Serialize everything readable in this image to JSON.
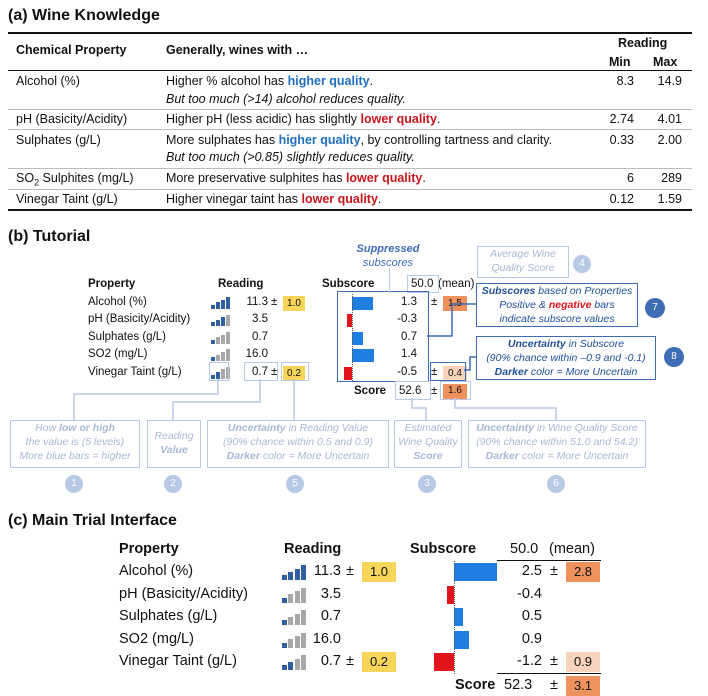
{
  "sectionA": {
    "title": "(a) Wine Knowledge",
    "headers": {
      "property": "Chemical Property",
      "generally": "Generally, wines with …",
      "reading": "Reading",
      "min": "Min",
      "max": "Max"
    },
    "rows": [
      {
        "property": "Alcohol (%)",
        "line1_pre": "Higher % alcohol has ",
        "line1_hl": "higher quality",
        "line1_hl_kind": "blue",
        "line1_post": ".",
        "line2": "But too much (>14) alcohol reduces quality.",
        "min": "8.3",
        "max": "14.9"
      },
      {
        "property": "pH (Basicity/Acidity)",
        "line1_pre": "Higher pH (less acidic) has slightly ",
        "line1_hl": "lower quality",
        "line1_hl_kind": "red",
        "line1_post": ".",
        "line2": "",
        "min": "2.74",
        "max": "4.01"
      },
      {
        "property": "Sulphates (g/L)",
        "line1_pre": "More sulphates has ",
        "line1_hl": "higher quality",
        "line1_hl_kind": "blue",
        "line1_post": ", by controlling tartness and clarity.",
        "line2": "But too much (>0.85) slightly reduces quality.",
        "min": "0.33",
        "max": "2.00"
      },
      {
        "property_pre": "SO",
        "property_sub": "2",
        "property_post": " Sulphites (mg/L)",
        "line1_pre": "More preservative sulphites has ",
        "line1_hl": "lower quality",
        "line1_hl_kind": "red",
        "line1_post": ".",
        "line2": "",
        "min": "6",
        "max": "289"
      },
      {
        "property": "Vinegar Taint (g/L)",
        "line1_pre": "Higher vinegar taint has ",
        "line1_hl": "lower quality",
        "line1_hl_kind": "red",
        "line1_post": ".",
        "line2": "",
        "min": "0.12",
        "max": "1.59"
      }
    ]
  },
  "sectionB": {
    "title": "(b) Tutorial",
    "header_property": "Property",
    "header_reading": "Reading",
    "header_subscore": "Subscore",
    "mean_value": "50.0",
    "mean_label": "(mean)",
    "suppressed_line1": "Suppressed",
    "suppressed_line2": "subscores",
    "avg_line1": "Average Wine",
    "avg_line2": "Quality Score",
    "rows": [
      {
        "property": "Alcohol (%)",
        "reading": "11.3",
        "pm": "±",
        "uncertainty": "1.0",
        "subscore": "1.3",
        "sub_pm": "±",
        "sub_unc": "1.5",
        "value": 1.3,
        "level": 4
      },
      {
        "property": "pH (Basicity/Acidity)",
        "reading": "3.5",
        "subscore": "-0.3",
        "value": -0.3,
        "level": 3
      },
      {
        "property": "Sulphates (g/L)",
        "reading": "0.7",
        "subscore": "0.7",
        "value": 0.7,
        "level": 1
      },
      {
        "property": "SO2 (mg/L)",
        "reading": "16.0",
        "subscore": "1.4",
        "value": 1.4,
        "level": 1
      },
      {
        "property": "Vinegar Taint (g/L)",
        "reading": "0.7",
        "pm": "±",
        "uncertainty": "0.2",
        "subscore": "-0.5",
        "sub_pm": "±",
        "sub_unc": "0.4",
        "value": -0.5,
        "level": 2
      }
    ],
    "score_label": "Score",
    "score_value": "52.6",
    "score_pm": "±",
    "score_unc": "1.6",
    "boxes": {
      "b1_pre": "How ",
      "b1_bold": "low or high",
      "b1_line2": "the value is (5 levels)",
      "b1_line3": "More blue bars = higher",
      "b2_line1": "Reading",
      "b2_line2": "Value",
      "b5_bold": "Uncertainty",
      "b5_line1_post": " in Reading Value",
      "b5_line2": "(90% chance within 0.5 and 0.9)",
      "b5_bold3": "Darker",
      "b5_line3_post": " color = More Uncertain",
      "b3_line1": "Estimated",
      "b3_line2": "Wine Quality",
      "b3_line3": "Score",
      "b6_bold": "Uncertainty",
      "b6_line1_post": " in Wine Quality Score",
      "b6_line2": "(90% chance within 51.0 and 54.2)",
      "b6_bold3": "Darker",
      "b6_line3_post": " color = More Uncertain",
      "b7_bold": "Subscores",
      "b7_line1_post": " based on Properties",
      "b7_line2_pre": "Positive & ",
      "b7_line2_neg": "negative",
      "b7_line2_post": " bars",
      "b7_line3": "indicate subscore values",
      "b8_bold": "Uncertainty",
      "b8_line1_post": " in Subscore",
      "b8_line2": "(90% chance within –0.9 and -0.1)",
      "b8_bold3": "Darker",
      "b8_line3_post": " color = More Uncertain"
    },
    "markers": [
      "1",
      "2",
      "3",
      "4",
      "5",
      "6",
      "7",
      "8"
    ]
  },
  "sectionC": {
    "title": "(c) Main Trial Interface",
    "header_property": "Property",
    "header_reading": "Reading",
    "header_subscore": "Subscore",
    "mean_value": "50.0",
    "mean_label": "(mean)",
    "rows": [
      {
        "property": "Alcohol (%)",
        "reading": "11.3",
        "pm": "±",
        "uncertainty": "1.0",
        "subscore": "2.5",
        "sub_pm": "±",
        "sub_unc": "2.8",
        "value": 2.5,
        "level": 4
      },
      {
        "property": "pH (Basicity/Acidity)",
        "reading": "3.5",
        "subscore": "-0.4",
        "value": -0.4,
        "level": 1
      },
      {
        "property": "Sulphates (g/L)",
        "reading": "0.7",
        "subscore": "0.5",
        "value": 0.5,
        "level": 1
      },
      {
        "property": "SO2 (mg/L)",
        "reading": "16.0",
        "subscore": "0.9",
        "value": 0.9,
        "level": 1
      },
      {
        "property": "Vinegar Taint (g/L)",
        "reading": "0.7",
        "pm": "±",
        "uncertainty": "0.2",
        "subscore": "-1.2",
        "sub_pm": "±",
        "sub_unc": "0.9",
        "value": -1.2,
        "level": 2
      }
    ],
    "score_label": "Score",
    "score_value": "52.3",
    "score_pm": "±",
    "score_unc": "3.1"
  },
  "colors": {
    "positive_bar": "#1f7fe0",
    "negative_bar": "#e0141b",
    "reading_unc": "#f7d55a",
    "sub_unc_dark": "#ee915c",
    "sub_unc_light": "#f8d4bd",
    "level_on": "#2f5f9e",
    "level_off": "#a8a8a8",
    "highlight_blue": "#1f6fbf",
    "highlight_red": "#c8161d"
  }
}
